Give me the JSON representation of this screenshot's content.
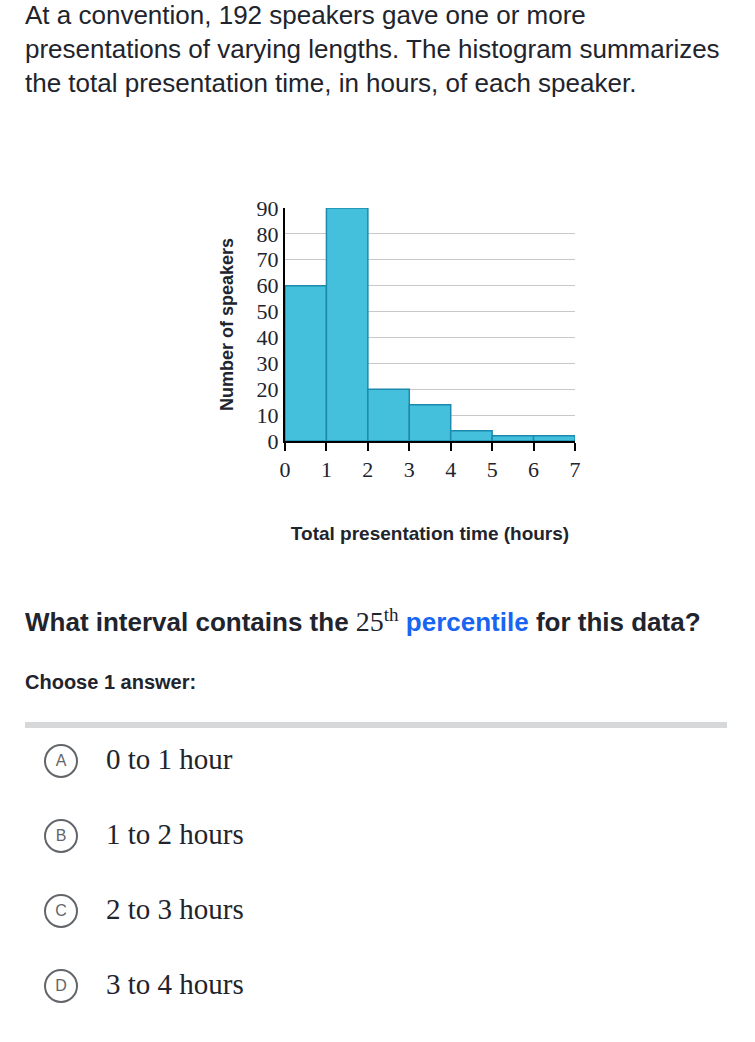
{
  "intro": "At a convention, 192 speakers gave one or more presentations of varying lengths. The histogram summarizes the total presentation time, in hours, of each speaker.",
  "chart_data": {
    "type": "histogram",
    "bins": [
      0,
      1,
      2,
      3,
      4,
      5,
      6,
      7
    ],
    "values": [
      60,
      90,
      20,
      14,
      4,
      2,
      2
    ],
    "color": "#45c0dc",
    "xlabel": "Total presentation time (hours)",
    "ylabel": "Number of speakers",
    "xlim": [
      0,
      7
    ],
    "xticks": [
      0,
      1,
      2,
      3,
      4,
      5,
      6,
      7
    ],
    "ylim": [
      0,
      90
    ],
    "yticks": [
      0,
      10,
      20,
      30,
      40,
      50,
      60,
      70,
      80,
      90
    ],
    "grid": true
  },
  "question": {
    "before": "What interval contains the ",
    "number": "25",
    "superscript": "th",
    "link": "percentile",
    "after": " for this data?"
  },
  "instruction": "Choose 1 answer:",
  "choices": [
    {
      "letter": "A",
      "text": "0 to 1 hour"
    },
    {
      "letter": "B",
      "text": "1 to 2 hours"
    },
    {
      "letter": "C",
      "text": "2 to 3 hours"
    },
    {
      "letter": "D",
      "text": "3 to 4 hours"
    }
  ]
}
